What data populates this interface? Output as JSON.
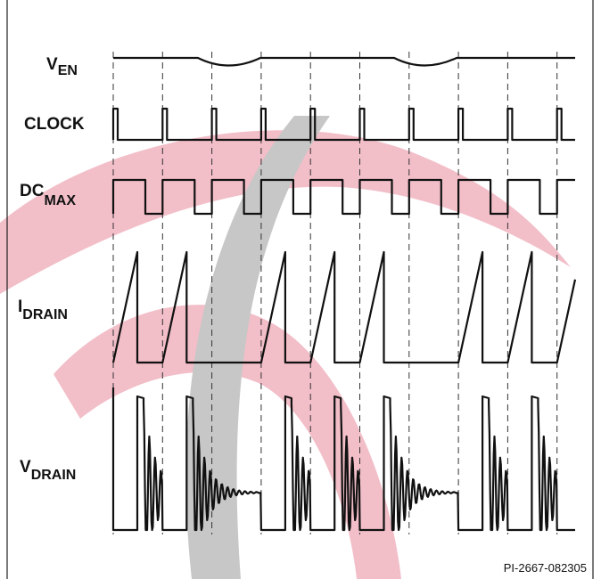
{
  "labels": [
    {
      "main": "V",
      "sub": "EN"
    },
    {
      "main": "CLOCK"
    },
    {
      "main": "DC",
      "sub": "MAX"
    },
    {
      "main": "I",
      "sub": "DRAIN"
    },
    {
      "main": "V",
      "sub": "DRAIN"
    }
  ],
  "figure_id": "PI-2667-082305"
}
